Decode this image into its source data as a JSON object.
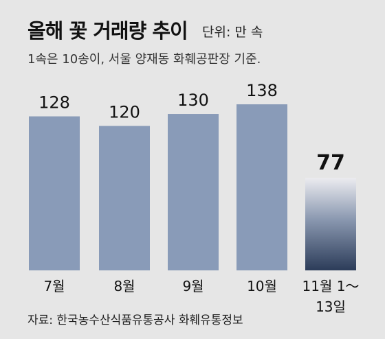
{
  "title": "올해 꽃 거래량 추이",
  "unit_label": "단위: 만 속",
  "subtitle": "1속은 10송이, 서울 양재동 화훼공판장 기준.",
  "source": "자료: 한국농수산식품유통공사 화훼유통정보",
  "colors": {
    "background": "#e6e6e6",
    "bar": "#899bb8",
    "highlight_top": "#ececf0",
    "highlight_bottom": "#2c3c59"
  },
  "chart_data": {
    "type": "bar",
    "categories": [
      "7월",
      "8월",
      "9월",
      "10월",
      "11월 1～\n13일"
    ],
    "values": [
      128,
      120,
      130,
      138,
      77
    ],
    "value_labels": [
      "128",
      "120",
      "130",
      "138",
      "77"
    ],
    "highlight_index": 4,
    "title": "올해 꽃 거래량 추이",
    "unit": "단위: 만 속",
    "xlabel": "",
    "ylabel": "",
    "ylim": [
      0,
      138
    ],
    "grid": false,
    "legend": "none"
  }
}
